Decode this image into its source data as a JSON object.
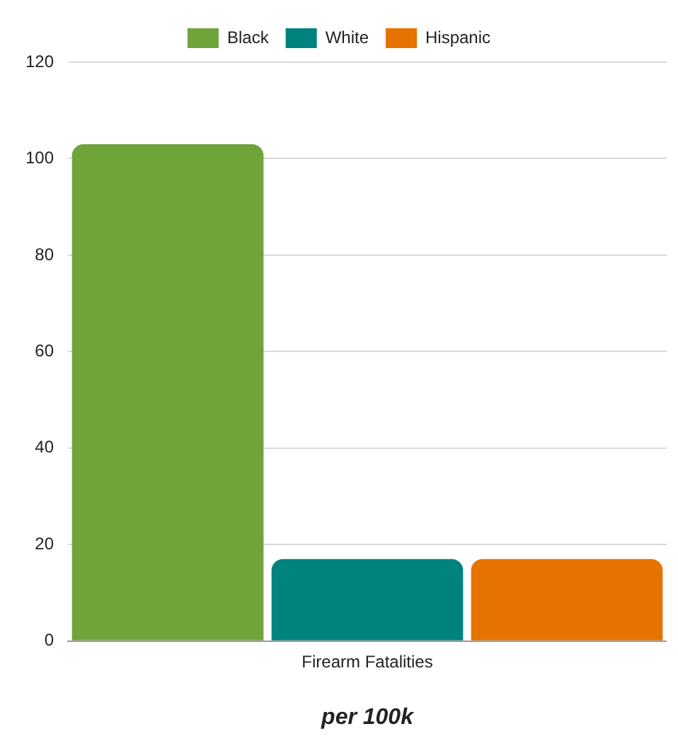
{
  "chart_data": {
    "type": "bar",
    "categories": [
      "Firearm Fatalities"
    ],
    "series": [
      {
        "name": "Black",
        "color": "#6fa43a",
        "values": [
          103
        ]
      },
      {
        "name": "White",
        "color": "#00827f",
        "values": [
          17
        ]
      },
      {
        "name": "Hispanic",
        "color": "#e67300",
        "values": [
          17
        ]
      }
    ],
    "xlabel": "per 100k",
    "ylim": [
      0,
      120
    ],
    "yticks": [
      0,
      20,
      40,
      60,
      80,
      100,
      120
    ],
    "grid": "y",
    "legend": "top"
  }
}
